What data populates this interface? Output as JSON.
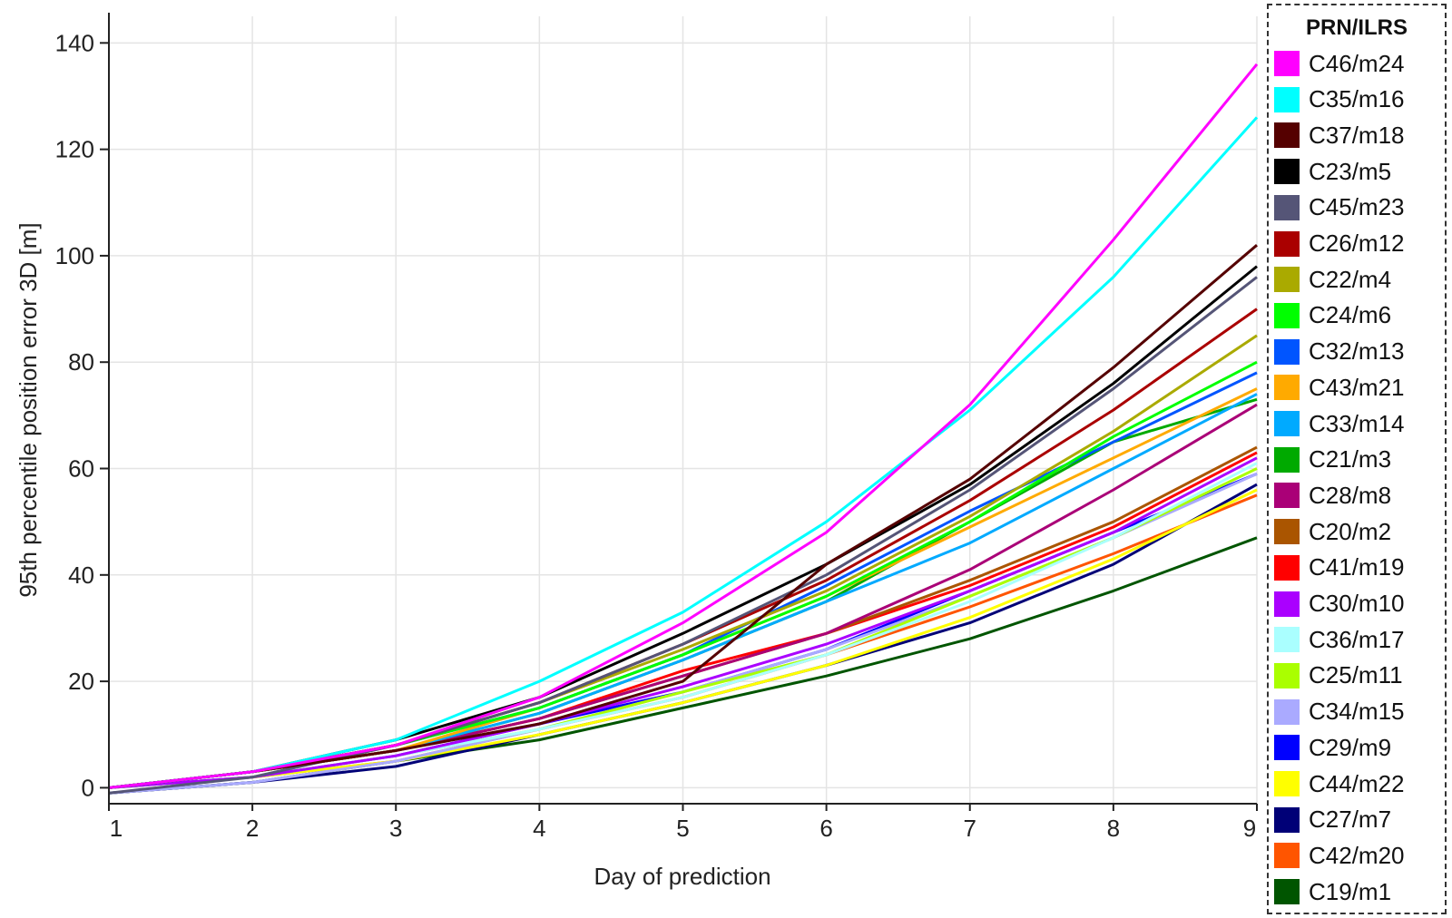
{
  "chart_data": {
    "type": "line",
    "title": "",
    "xlabel": "Day of prediction",
    "ylabel": "95th percentile position error 3D [m]",
    "x": [
      1,
      2,
      3,
      4,
      5,
      6,
      7,
      8,
      9
    ],
    "xlim": [
      1,
      9
    ],
    "ylim": [
      -3,
      145
    ],
    "yticks": [
      0,
      20,
      40,
      60,
      80,
      100,
      120,
      140
    ],
    "xticks": [
      1,
      2,
      3,
      4,
      5,
      6,
      7,
      8,
      9
    ],
    "grid": true,
    "legend_placement": "right",
    "legend_title": "PRN/ILRS",
    "series": [
      {
        "name": "C46/m24",
        "color": "#ff00ff",
        "values": [
          0,
          3,
          8,
          17,
          31,
          48,
          72,
          103,
          136
        ]
      },
      {
        "name": "C35/m16",
        "color": "#00ffff",
        "values": [
          0,
          3,
          9,
          20,
          33,
          50,
          71,
          96,
          126
        ]
      },
      {
        "name": "C37/m18",
        "color": "#550000",
        "values": [
          0,
          3,
          7,
          12,
          20,
          42,
          58,
          79,
          102
        ]
      },
      {
        "name": "C23/m5",
        "color": "#000000",
        "values": [
          0,
          3,
          9,
          17,
          29,
          42,
          57,
          76,
          98
        ]
      },
      {
        "name": "C45/m23",
        "color": "#555577",
        "values": [
          -1,
          2,
          8,
          16,
          27,
          40,
          56,
          75,
          96
        ]
      },
      {
        "name": "C26/m12",
        "color": "#aa0000",
        "values": [
          0,
          3,
          8,
          16,
          27,
          39,
          54,
          71,
          90
        ]
      },
      {
        "name": "C22/m4",
        "color": "#aaaa00",
        "values": [
          0,
          3,
          8,
          16,
          26,
          37,
          51,
          67,
          85
        ]
      },
      {
        "name": "C24/m6",
        "color": "#00ff00",
        "values": [
          0,
          3,
          8,
          15,
          25,
          36,
          50,
          66,
          80
        ]
      },
      {
        "name": "C32/m13",
        "color": "#0055ff",
        "values": [
          0,
          3,
          8,
          15,
          25,
          38,
          52,
          65,
          78
        ]
      },
      {
        "name": "C43/m21",
        "color": "#ffaa00",
        "values": [
          0,
          3,
          7,
          15,
          25,
          36,
          49,
          62,
          75
        ]
      },
      {
        "name": "C33/m14",
        "color": "#00aaff",
        "values": [
          0,
          3,
          7,
          14,
          24,
          35,
          46,
          60,
          74
        ]
      },
      {
        "name": "C21/m3",
        "color": "#00aa00",
        "values": [
          0,
          3,
          7,
          14,
          24,
          35,
          50,
          65,
          73
        ]
      },
      {
        "name": "C28/m8",
        "color": "#aa0077",
        "values": [
          0,
          3,
          7,
          13,
          21,
          29,
          41,
          56,
          72
        ]
      },
      {
        "name": "C20/m2",
        "color": "#aa5500",
        "values": [
          0,
          3,
          7,
          13,
          21,
          29,
          39,
          50,
          64
        ]
      },
      {
        "name": "C41/m19",
        "color": "#ff0000",
        "values": [
          0,
          3,
          7,
          13,
          22,
          29,
          38,
          49,
          63
        ]
      },
      {
        "name": "C30/m10",
        "color": "#aa00ff",
        "values": [
          0,
          2,
          6,
          12,
          19,
          27,
          37,
          48,
          62
        ]
      },
      {
        "name": "C36/m17",
        "color": "#aaffff",
        "values": [
          0,
          2,
          6,
          11,
          17,
          25,
          35,
          47,
          61
        ]
      },
      {
        "name": "C25/m11",
        "color": "#aaff00",
        "values": [
          0,
          2,
          6,
          11,
          18,
          25,
          36,
          47,
          60
        ]
      },
      {
        "name": "C34/m15",
        "color": "#aaaaff",
        "values": [
          -1,
          1,
          5,
          11,
          18,
          26,
          36,
          47,
          59
        ]
      },
      {
        "name": "C29/m9",
        "color": "#0000ff",
        "values": [
          0,
          2,
          6,
          12,
          18,
          26,
          37,
          48,
          59
        ]
      },
      {
        "name": "C44/m22",
        "color": "#ffff00",
        "values": [
          0,
          2,
          5,
          10,
          16,
          23,
          32,
          43,
          56
        ]
      },
      {
        "name": "C27/m7",
        "color": "#000077",
        "values": [
          -1,
          1,
          4,
          10,
          16,
          23,
          31,
          42,
          57
        ]
      },
      {
        "name": "C42/m20",
        "color": "#ff5500",
        "values": [
          0,
          2,
          5,
          11,
          17,
          25,
          34,
          44,
          55
        ]
      },
      {
        "name": "C19/m1",
        "color": "#005500",
        "values": [
          -1,
          1,
          5,
          9,
          15,
          21,
          28,
          37,
          47
        ]
      }
    ]
  }
}
